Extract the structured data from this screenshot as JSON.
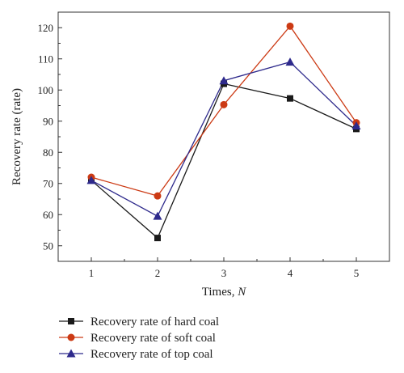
{
  "chart_data": {
    "type": "line",
    "xlabel": "Times, ",
    "xlabel_var": "N",
    "ylabel": "Recovery rate (rate)",
    "categories": [
      1,
      2,
      3,
      4,
      5
    ],
    "xlim": [
      0.5,
      5.5
    ],
    "ylim": [
      45,
      125
    ],
    "yticks": [
      50,
      60,
      70,
      80,
      90,
      100,
      110,
      120
    ],
    "grid": false,
    "legend_position": "bottom",
    "series": [
      {
        "name": "Recovery rate of hard coal",
        "color": "#1a1a1a",
        "marker": "square",
        "values": [
          71,
          52.5,
          102,
          97.3,
          87.5
        ]
      },
      {
        "name": "Recovery rate of soft coal",
        "color": "#cc3a14",
        "marker": "circle",
        "values": [
          72,
          66,
          95.3,
          120.5,
          89.5
        ]
      },
      {
        "name": "Recovery rate of top coal",
        "color": "#2e2a8c",
        "marker": "triangle",
        "values": [
          71,
          59.5,
          103,
          109,
          88.5
        ]
      }
    ]
  }
}
